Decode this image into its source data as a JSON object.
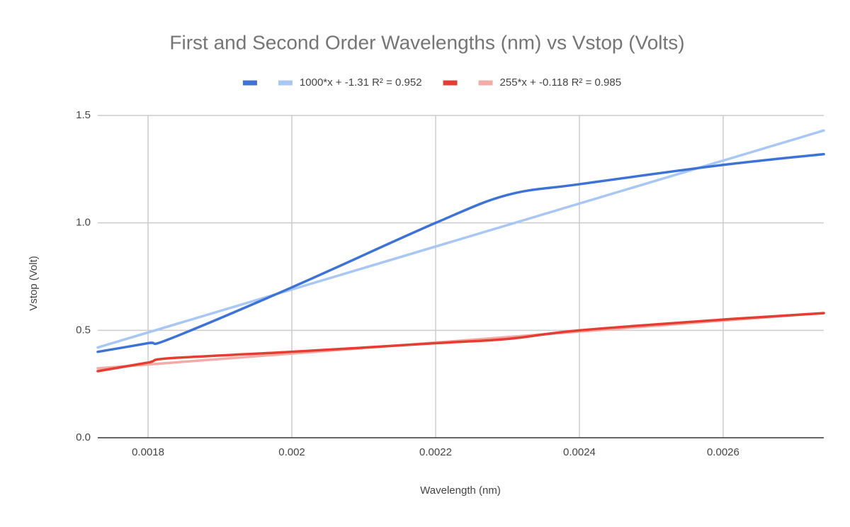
{
  "chart_data": {
    "type": "line",
    "title": "First and Second Order Wavelengths (nm) vs Vstop (Volts)",
    "x_label": "Wavelength (nm)",
    "y_label": "Vstop (Volt)",
    "series": [
      {
        "color": "#3d73d6",
        "x": [
          0.00173,
          0.0018,
          0.00183,
          0.002,
          0.0022,
          0.0023,
          0.0024,
          0.0026,
          0.00274
        ],
        "values": [
          0.4,
          0.44,
          0.46,
          0.7,
          1.0,
          1.13,
          1.18,
          1.27,
          1.32
        ]
      },
      {
        "name": "1000*x + -1.31 R² = 0.952",
        "color": "#a9c7f5",
        "x": [
          0.00173,
          0.00274
        ],
        "values": [
          0.42,
          1.43
        ]
      },
      {
        "color": "#e53d31",
        "x": [
          0.00173,
          0.0018,
          0.00183,
          0.002,
          0.0022,
          0.0023,
          0.0024,
          0.0026,
          0.00274
        ],
        "values": [
          0.31,
          0.35,
          0.37,
          0.4,
          0.44,
          0.46,
          0.5,
          0.55,
          0.58
        ]
      },
      {
        "name": "255*x + -0.118 R² = 0.985",
        "color": "#f4aba6",
        "x": [
          0.00173,
          0.00274
        ],
        "values": [
          0.323,
          0.581
        ]
      }
    ],
    "xlim": [
      0.00173,
      0.00274
    ],
    "xticks": [
      0.0018,
      0.002,
      0.0022,
      0.0024,
      0.0026
    ],
    "ylim": [
      0,
      1.5
    ],
    "yticks": [
      {
        "value": 0,
        "label": "0.0"
      },
      0.5,
      {
        "value": 1,
        "label": "1.0"
      },
      1.5
    ],
    "grid": true,
    "legend": "top"
  }
}
